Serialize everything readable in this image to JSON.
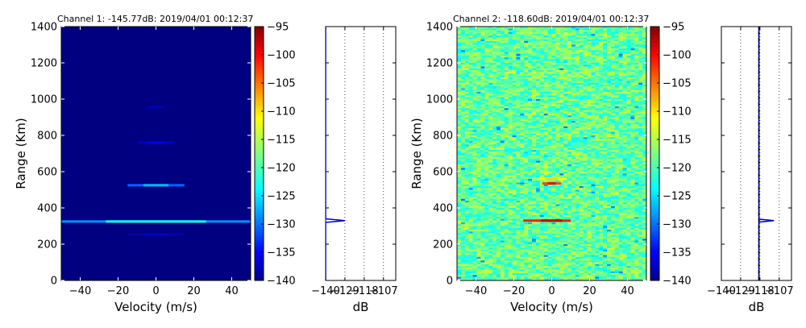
{
  "chart_data": [
    {
      "type": "heatmap",
      "title": "Channel 1: -145.77dB: 2019/04/01 00:12:37",
      "xlabel": "Velocity (m/s)",
      "ylabel": "Range (Km)",
      "xlim": [
        -50,
        50
      ],
      "ylim": [
        0,
        1400
      ],
      "xticks": [
        -40,
        -20,
        0,
        20,
        40
      ],
      "yticks": [
        0,
        200,
        400,
        600,
        800,
        1000,
        1200,
        1400
      ],
      "colormap": "jet",
      "clim": [
        -140,
        -95
      ],
      "colorbar_ticks": [
        -95,
        -100,
        -105,
        -110,
        -115,
        -120,
        -125,
        -130,
        -135,
        -140
      ],
      "background_db": -140,
      "features": [
        {
          "range_km": 325,
          "velocity": [
            -60,
            60
          ],
          "peak_db": -128,
          "center_db": -122
        },
        {
          "range_km": 525,
          "velocity": [
            -15,
            15
          ],
          "peak_db": -130,
          "center_db": -126
        },
        {
          "range_km": 760,
          "velocity": [
            -10,
            10
          ],
          "peak_db": -137,
          "center_db": -135
        },
        {
          "range_km": 955,
          "velocity": [
            -5,
            5
          ],
          "peak_db": -138,
          "center_db": -137
        },
        {
          "range_km": 255,
          "velocity": [
            -15,
            15
          ],
          "peak_db": -138,
          "center_db": -137
        }
      ]
    },
    {
      "type": "line",
      "xlabel": "dB",
      "xlim": [
        -140,
        -100
      ],
      "xticks": [
        -140,
        -129,
        -118,
        -107
      ],
      "ylim": [
        0,
        1400
      ],
      "series": [
        {
          "color": "#0000cc",
          "x": [
            -140,
            -140,
            -129,
            -140,
            -140
          ],
          "y": [
            0,
            320,
            330,
            340,
            1400
          ]
        }
      ]
    },
    {
      "type": "heatmap",
      "title": "Channel 2: -118.60dB: 2019/04/01 00:12:37",
      "xlabel": "Velocity (m/s)",
      "ylabel": "Range (Km)",
      "xlim": [
        -50,
        50
      ],
      "ylim": [
        0,
        1400
      ],
      "xticks": [
        -40,
        -20,
        0,
        20,
        40
      ],
      "yticks": [
        0,
        200,
        400,
        600,
        800,
        1000,
        1200,
        1400
      ],
      "colormap": "jet",
      "clim": [
        -140,
        -95
      ],
      "colorbar_ticks": [
        -95,
        -100,
        -105,
        -110,
        -115,
        -120,
        -125,
        -130,
        -135,
        -140
      ],
      "background_db": -118.6,
      "features": [
        {
          "range_km": 330,
          "velocity": [
            -15,
            10
          ],
          "peak_db": -102,
          "center_db": -98
        },
        {
          "range_km": 535,
          "velocity": [
            -5,
            5
          ],
          "peak_db": -104,
          "center_db": -100
        },
        {
          "range_km": 560,
          "velocity": [
            -8,
            8
          ],
          "peak_db": -112,
          "center_db": -110
        }
      ]
    },
    {
      "type": "line",
      "xlabel": "dB",
      "xlim": [
        -140,
        -100
      ],
      "xticks": [
        -140,
        -129,
        -118,
        -107
      ],
      "ylim": [
        0,
        1400
      ],
      "series": [
        {
          "color": "#0000cc",
          "x": [
            -118.6,
            -118.6,
            -110,
            -118.6,
            -118.6
          ],
          "y": [
            0,
            322,
            330,
            338,
            1400
          ]
        },
        {
          "color": "#000000",
          "dash": "dashed",
          "x": [
            -118.6,
            -118.6
          ],
          "y": [
            0,
            1400
          ]
        }
      ]
    }
  ]
}
